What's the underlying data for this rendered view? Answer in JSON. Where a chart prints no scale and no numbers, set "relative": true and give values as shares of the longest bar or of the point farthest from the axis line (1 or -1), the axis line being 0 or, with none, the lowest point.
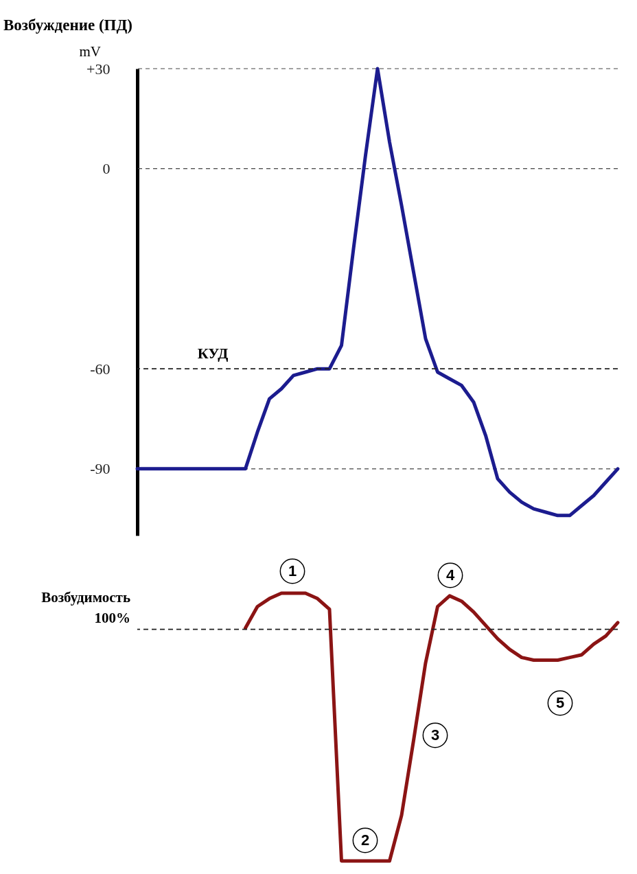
{
  "chart_data": [
    {
      "type": "line",
      "title": "Возбуждение (ПД)",
      "ylabel": "mV",
      "categories": [
        null,
        null,
        null,
        null,
        null,
        null,
        null,
        null,
        null,
        null,
        null,
        null,
        null,
        null,
        null,
        null,
        null,
        null,
        null,
        null,
        null,
        null,
        null,
        null,
        null,
        null,
        null,
        null,
        null,
        null,
        null,
        null,
        null,
        null,
        null,
        null,
        null,
        null,
        null,
        null,
        null
      ],
      "series": [
        {
          "color": "#1c1c8f",
          "values": [
            -90,
            -90,
            -90,
            -90,
            -90,
            -90,
            -90,
            -90,
            -90,
            -90,
            -79,
            -69,
            -66,
            -62,
            -61,
            -60,
            -60,
            -53,
            -24,
            4,
            30,
            8,
            -11,
            -31,
            -51,
            -61,
            -63,
            -65,
            -70,
            -80,
            -93,
            -97,
            -100,
            -102,
            -103,
            -104,
            -104,
            -101,
            -98,
            -94,
            -90
          ]
        }
      ],
      "ylim": [
        -110,
        30
      ],
      "yticks": [
        {
          "value": 30,
          "label": "+30"
        },
        0,
        -60,
        -90
      ],
      "grid": "y",
      "tick_labels": "y",
      "ref_lines": [
        {
          "axis": "y",
          "value": -60,
          "label": "КУД"
        }
      ]
    },
    {
      "type": "line",
      "ylabel": "Возбудимость 100%",
      "relative": true,
      "categories": [
        null,
        null,
        null,
        null,
        null,
        null,
        null,
        null,
        null,
        null,
        null,
        null,
        null,
        null,
        null,
        null,
        null,
        null,
        null,
        null,
        null,
        null,
        null,
        null,
        null,
        null,
        null,
        null,
        null,
        null,
        null,
        null
      ],
      "series": [
        {
          "color": "#8b1414",
          "values": [
            0.87,
            0.95,
            0.98,
            1,
            1,
            1,
            0.98,
            0.94,
            0,
            0,
            0,
            0,
            0,
            0.17,
            0.45,
            0.74,
            0.95,
            0.99,
            0.97,
            0.93,
            0.88,
            0.83,
            0.79,
            0.76,
            0.75,
            0.75,
            0.75,
            0.76,
            0.77,
            0.81,
            0.84,
            0.89
          ]
        }
      ],
      "ref_lines": [
        {
          "axis": "y",
          "value": 0.865
        }
      ],
      "tick_labels": false,
      "annotations": [
        "1",
        "2",
        "3",
        "4",
        "5"
      ]
    }
  ]
}
